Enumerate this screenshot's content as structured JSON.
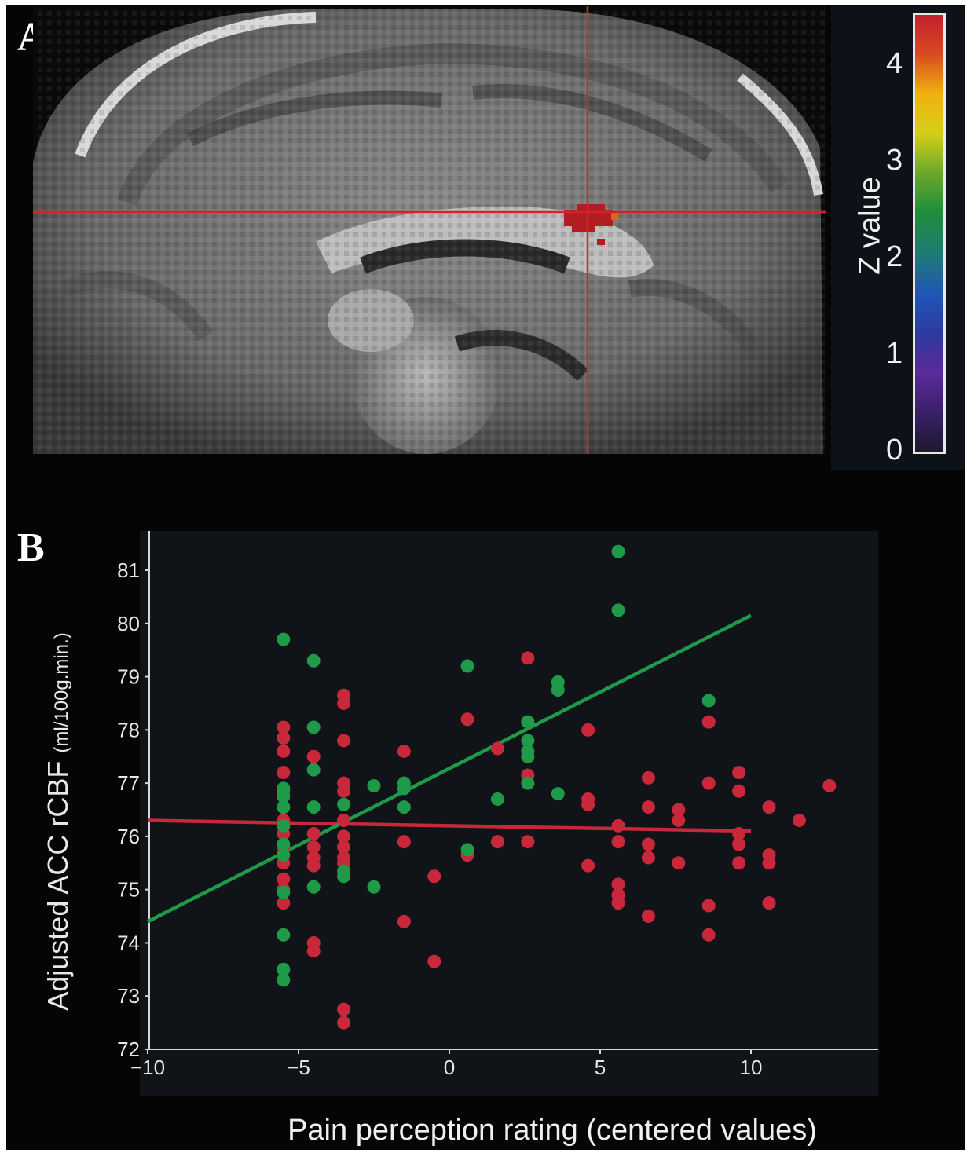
{
  "panels": {
    "a_label": "A",
    "b_label": "B"
  },
  "colorbar": {
    "label": "Z value",
    "ticks": [
      "0",
      "1",
      "2",
      "3",
      "4"
    ],
    "colors": [
      "#1c1a2e",
      "#3a1f6b",
      "#5b2a9c",
      "#2d3a9e",
      "#1f56b8",
      "#1d7a76",
      "#1f8f3a",
      "#6ea82a",
      "#d6cf18",
      "#f0b010",
      "#d94a1e",
      "#c0212e"
    ]
  },
  "chart_data": {
    "type": "scatter",
    "xlabel": "Pain perception rating (centered values)",
    "ylabel_main": "Adjusted ACC rCBF",
    "ylabel_unit": "(ml/100g.min.)",
    "xlim": [
      -10,
      14
    ],
    "ylim": [
      72,
      81.8
    ],
    "xticks": [
      "−10",
      "−5",
      "0",
      "5",
      "10"
    ],
    "xtick_values": [
      -10,
      -5,
      0,
      5,
      10
    ],
    "yticks": [
      "72",
      "73",
      "74",
      "75",
      "76",
      "77",
      "78",
      "79",
      "80",
      "81"
    ],
    "ytick_values": [
      72,
      73,
      74,
      75,
      76,
      77,
      78,
      79,
      80,
      81
    ],
    "colors": {
      "red": "#c8283a",
      "green": "#1f9a48"
    },
    "series": [
      {
        "color": "red",
        "points": [
          [
            -5.5,
            78.05
          ],
          [
            -5.5,
            77.85
          ],
          [
            -5.5,
            77.6
          ],
          [
            -5.5,
            77.2
          ],
          [
            -5.5,
            76.85
          ],
          [
            -5.5,
            76.55
          ],
          [
            -5.5,
            76.3
          ],
          [
            -5.5,
            76.05
          ],
          [
            -5.5,
            75.8
          ],
          [
            -5.5,
            75.5
          ],
          [
            -5.5,
            75.2
          ],
          [
            -5.5,
            75.0
          ],
          [
            -5.5,
            74.75
          ],
          [
            -4.5,
            77.5
          ],
          [
            -4.5,
            76.05
          ],
          [
            -4.5,
            75.8
          ],
          [
            -4.5,
            75.6
          ],
          [
            -4.5,
            75.45
          ],
          [
            -4.5,
            74.0
          ],
          [
            -4.5,
            73.85
          ],
          [
            -3.5,
            78.65
          ],
          [
            -3.5,
            78.5
          ],
          [
            -3.5,
            77.8
          ],
          [
            -3.5,
            77.0
          ],
          [
            -3.5,
            76.85
          ],
          [
            -3.5,
            76.3
          ],
          [
            -3.5,
            76.0
          ],
          [
            -3.5,
            75.8
          ],
          [
            -3.5,
            75.6
          ],
          [
            -3.5,
            75.5
          ],
          [
            -3.5,
            72.75
          ],
          [
            -3.5,
            72.5
          ],
          [
            -1.5,
            77.6
          ],
          [
            -1.5,
            75.9
          ],
          [
            -1.5,
            74.4
          ],
          [
            -0.5,
            75.25
          ],
          [
            -0.5,
            73.65
          ],
          [
            0.6,
            78.2
          ],
          [
            0.6,
            75.65
          ],
          [
            1.6,
            77.65
          ],
          [
            1.6,
            75.9
          ],
          [
            2.6,
            79.35
          ],
          [
            2.6,
            77.15
          ],
          [
            2.6,
            75.9
          ],
          [
            4.6,
            78.0
          ],
          [
            4.6,
            76.7
          ],
          [
            4.6,
            76.6
          ],
          [
            4.6,
            75.45
          ],
          [
            5.6,
            76.2
          ],
          [
            5.6,
            75.9
          ],
          [
            5.6,
            75.1
          ],
          [
            5.6,
            74.9
          ],
          [
            5.6,
            74.75
          ],
          [
            6.6,
            77.1
          ],
          [
            6.6,
            76.55
          ],
          [
            6.6,
            75.85
          ],
          [
            6.6,
            75.6
          ],
          [
            6.6,
            74.5
          ],
          [
            7.6,
            76.5
          ],
          [
            7.6,
            76.3
          ],
          [
            7.6,
            75.5
          ],
          [
            8.6,
            78.15
          ],
          [
            8.6,
            77.0
          ],
          [
            8.6,
            74.7
          ],
          [
            8.6,
            74.15
          ],
          [
            9.6,
            77.2
          ],
          [
            9.6,
            76.85
          ],
          [
            9.6,
            76.05
          ],
          [
            9.6,
            75.85
          ],
          [
            9.6,
            75.5
          ],
          [
            10.6,
            76.55
          ],
          [
            10.6,
            75.65
          ],
          [
            10.6,
            75.5
          ],
          [
            10.6,
            74.75
          ],
          [
            11.6,
            76.3
          ],
          [
            12.6,
            76.95
          ]
        ],
        "fit": [
          [
            -10,
            76.3
          ],
          [
            10,
            76.1
          ]
        ]
      },
      {
        "color": "green",
        "points": [
          [
            -5.5,
            79.7
          ],
          [
            -5.5,
            76.9
          ],
          [
            -5.5,
            76.75
          ],
          [
            -5.5,
            76.55
          ],
          [
            -5.5,
            76.2
          ],
          [
            -5.5,
            75.85
          ],
          [
            -5.5,
            75.65
          ],
          [
            -5.5,
            74.95
          ],
          [
            -5.5,
            74.15
          ],
          [
            -5.5,
            73.5
          ],
          [
            -5.5,
            73.3
          ],
          [
            -4.5,
            79.3
          ],
          [
            -4.5,
            78.05
          ],
          [
            -4.5,
            77.25
          ],
          [
            -4.5,
            76.55
          ],
          [
            -4.5,
            75.05
          ],
          [
            -3.5,
            76.6
          ],
          [
            -3.5,
            75.35
          ],
          [
            -3.5,
            75.25
          ],
          [
            -2.5,
            76.95
          ],
          [
            -2.5,
            75.05
          ],
          [
            -1.5,
            77.0
          ],
          [
            -1.5,
            76.9
          ],
          [
            -1.5,
            76.55
          ],
          [
            0.6,
            79.2
          ],
          [
            0.6,
            75.75
          ],
          [
            1.6,
            76.7
          ],
          [
            2.6,
            78.15
          ],
          [
            2.6,
            77.8
          ],
          [
            2.6,
            77.6
          ],
          [
            2.6,
            77.5
          ],
          [
            2.6,
            77.0
          ],
          [
            3.6,
            78.9
          ],
          [
            3.6,
            78.75
          ],
          [
            3.6,
            76.8
          ],
          [
            5.6,
            81.35
          ],
          [
            5.6,
            80.25
          ],
          [
            8.6,
            78.55
          ]
        ],
        "fit": [
          [
            -10,
            74.4
          ],
          [
            10,
            80.15
          ]
        ]
      }
    ]
  }
}
